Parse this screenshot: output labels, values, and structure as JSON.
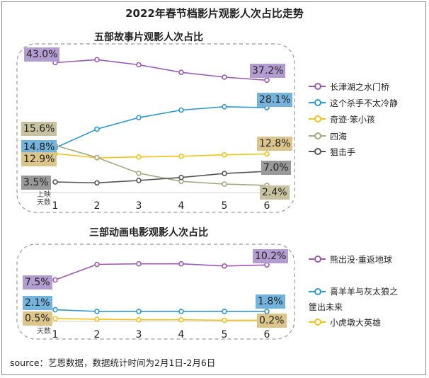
{
  "title": "2022年春节档影片观影人次占比走势",
  "source": "source：艺恩数据，数据统计时间为2月1日-2月6日",
  "chart_data": [
    {
      "type": "line",
      "title": "五部故事片观影人次占比",
      "xlabel": "上映天数",
      "categories": [
        "1",
        "2",
        "3",
        "4",
        "5",
        "6"
      ],
      "ylim": [
        0,
        45
      ],
      "series": [
        {
          "name": "长津湖之水门桥",
          "color": "#9b59b6",
          "label_bg": "#b39cd0",
          "values": [
            43.0,
            44.0,
            42.3,
            39.8,
            38.2,
            37.2
          ],
          "start_label": "43.0%",
          "end_label": "37.2%"
        },
        {
          "name": "这个杀手不太冷静",
          "color": "#2f97d2",
          "label_bg": "#74b4dc",
          "values": [
            14.8,
            21.0,
            24.8,
            27.3,
            28.4,
            28.1
          ],
          "start_label": "14.8%",
          "end_label": "28.1%"
        },
        {
          "name": "奇迹·笨小孩",
          "color": "#f2c318",
          "label_bg": "#dcc58a",
          "values": [
            12.9,
            11.5,
            11.8,
            12.0,
            12.5,
            12.8
          ],
          "start_label": "12.9%",
          "end_label": "12.8%"
        },
        {
          "name": "四海",
          "color": "#a6a881",
          "label_bg": "#c7c3a0",
          "values": [
            15.6,
            11.6,
            6.4,
            3.7,
            2.8,
            2.4
          ],
          "start_label": "15.6%",
          "end_label": "2.4%"
        },
        {
          "name": "狙击手",
          "color": "#555555",
          "label_bg": "#999999",
          "values": [
            3.5,
            3.2,
            4.0,
            5.0,
            6.3,
            7.0
          ],
          "start_label": "3.5%",
          "end_label": "7.0%"
        }
      ]
    },
    {
      "type": "line",
      "title": "三部动画电影观影人次占比",
      "xlabel": "上映天数",
      "categories": [
        "1",
        "2",
        "3",
        "4",
        "5",
        "6"
      ],
      "ylim": [
        0,
        11
      ],
      "series": [
        {
          "name": "熊出没·重返地球",
          "color": "#9b59b6",
          "label_bg": "#b39cd0",
          "values": [
            7.5,
            10.3,
            10.4,
            10.4,
            10.0,
            10.2
          ],
          "start_label": "7.5%",
          "end_label": "10.2%"
        },
        {
          "name": "喜羊羊与灰太狼之筐出未来",
          "color": "#2f97d2",
          "label_bg": "#74b4dc",
          "values": [
            2.1,
            1.8,
            1.8,
            1.8,
            1.8,
            1.8
          ],
          "start_label": "2.1%",
          "end_label": "1.8%"
        },
        {
          "name": "小虎墩大英雄",
          "color": "#f2c318",
          "label_bg": "#dcc58a",
          "values": [
            0.5,
            0.4,
            0.3,
            0.3,
            0.2,
            0.2
          ],
          "start_label": "0.5%",
          "end_label": "0.2%"
        }
      ]
    }
  ],
  "legend2_lines": {
    "line1": "喜羊羊与灰太狼之",
    "line2": "筐出未来"
  },
  "day_label": {
    "line1": "上映",
    "line2": "天数"
  }
}
